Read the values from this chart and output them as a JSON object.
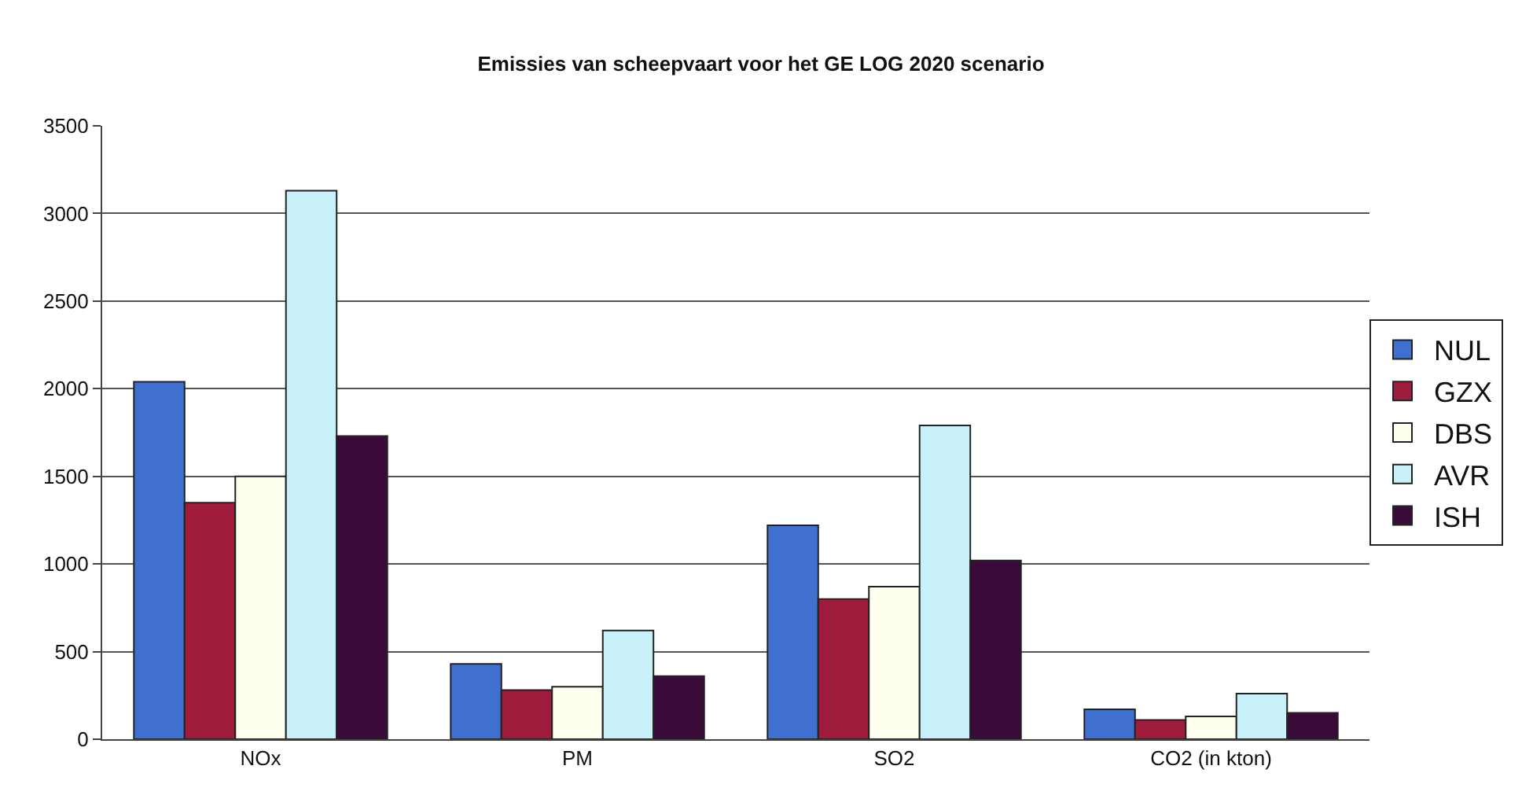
{
  "chart_data": {
    "type": "bar",
    "title": "Emissies van scheepvaart voor het GE LOG 2020 scenario",
    "categories": [
      "NOx",
      "PM",
      "SO2",
      "CO2 (in kton)"
    ],
    "series": [
      {
        "name": "NUL",
        "color": "#3f6fcf",
        "values": [
          2040,
          430,
          1220,
          170
        ]
      },
      {
        "name": "GZX",
        "color": "#a01c3c",
        "values": [
          1350,
          280,
          800,
          110
        ]
      },
      {
        "name": "DBS",
        "color": "#fffff0",
        "values": [
          1500,
          300,
          870,
          130
        ]
      },
      {
        "name": "AVR",
        "color": "#c8f0f8",
        "values": [
          3130,
          620,
          1790,
          260
        ]
      },
      {
        "name": "ISH",
        "color": "#3a0a38",
        "values": [
          1730,
          360,
          1020,
          150
        ]
      }
    ],
    "ylim": [
      0,
      3500
    ],
    "yticks": [
      0,
      500,
      1000,
      1500,
      2000,
      2500,
      3000,
      3500
    ],
    "grid": "y",
    "legend": "right"
  }
}
